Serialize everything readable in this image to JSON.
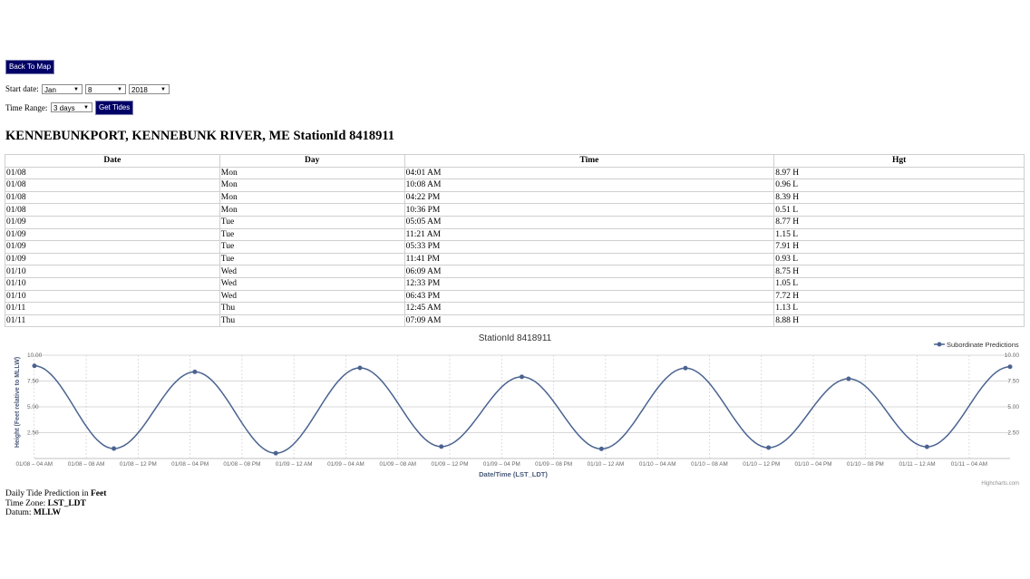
{
  "back_button": {
    "label": "Back To Map"
  },
  "start_date": {
    "label": "Start date:",
    "month": "Jan",
    "day": "8",
    "year": "2018"
  },
  "time_range": {
    "label": "Time Range:",
    "value": "3 days",
    "get_tides_label": "Get Tides"
  },
  "station_title": "KENNEBUNKPORT, KENNEBUNK RIVER, ME StationId 8418911",
  "table": {
    "headers": [
      "Date",
      "Day",
      "Time",
      "Hgt"
    ],
    "rows": [
      [
        "01/08",
        "Mon",
        "04:01 AM",
        "8.97 H"
      ],
      [
        "01/08",
        "Mon",
        "10:08 AM",
        "0.96 L"
      ],
      [
        "01/08",
        "Mon",
        "04:22 PM",
        "8.39 H"
      ],
      [
        "01/08",
        "Mon",
        "10:36 PM",
        "0.51 L"
      ],
      [
        "01/09",
        "Tue",
        "05:05 AM",
        "8.77 H"
      ],
      [
        "01/09",
        "Tue",
        "11:21 AM",
        "1.15 L"
      ],
      [
        "01/09",
        "Tue",
        "05:33 PM",
        "7.91 H"
      ],
      [
        "01/09",
        "Tue",
        "11:41 PM",
        "0.93 L"
      ],
      [
        "01/10",
        "Wed",
        "06:09 AM",
        "8.75 H"
      ],
      [
        "01/10",
        "Wed",
        "12:33 PM",
        "1.05 L"
      ],
      [
        "01/10",
        "Wed",
        "06:43 PM",
        "7.72 H"
      ],
      [
        "01/11",
        "Thu",
        "12:45 AM",
        "1.13 L"
      ],
      [
        "01/11",
        "Thu",
        "07:09 AM",
        "8.88 H"
      ]
    ]
  },
  "chart_data": {
    "type": "line",
    "title": "StationId 8418911",
    "xlabel": "Date/Time (LST_LDT)",
    "ylabel": "Height (Feet relative to MLLW)",
    "series": [
      {
        "name": "Subordinate Predictions",
        "color": "#4a6390",
        "points": [
          {
            "t": "01/08 04:01",
            "h": 8.97
          },
          {
            "t": "01/08 10:08",
            "h": 0.96
          },
          {
            "t": "01/08 16:22",
            "h": 8.39
          },
          {
            "t": "01/08 22:36",
            "h": 0.51
          },
          {
            "t": "01/09 05:05",
            "h": 8.77
          },
          {
            "t": "01/09 11:21",
            "h": 1.15
          },
          {
            "t": "01/09 17:33",
            "h": 7.91
          },
          {
            "t": "01/09 23:41",
            "h": 0.93
          },
          {
            "t": "01/10 06:09",
            "h": 8.75
          },
          {
            "t": "01/10 12:33",
            "h": 1.05
          },
          {
            "t": "01/10 18:43",
            "h": 7.72
          },
          {
            "t": "01/11 00:45",
            "h": 1.13
          },
          {
            "t": "01/11 07:09",
            "h": 8.88
          }
        ]
      }
    ],
    "x_ticks": [
      {
        "t": "01/08 04:00",
        "label": "01/08 – 04 AM"
      },
      {
        "t": "01/08 08:00",
        "label": "01/08 – 08 AM"
      },
      {
        "t": "01/08 12:00",
        "label": "01/08 – 12 PM"
      },
      {
        "t": "01/08 16:00",
        "label": "01/08 – 04 PM"
      },
      {
        "t": "01/08 20:00",
        "label": "01/08 – 08 PM"
      },
      {
        "t": "01/09 00:00",
        "label": "01/09 – 12 AM"
      },
      {
        "t": "01/09 04:00",
        "label": "01/09 – 04 AM"
      },
      {
        "t": "01/09 08:00",
        "label": "01/09 – 08 AM"
      },
      {
        "t": "01/09 12:00",
        "label": "01/09 – 12 PM"
      },
      {
        "t": "01/09 16:00",
        "label": "01/09 – 04 PM"
      },
      {
        "t": "01/09 20:00",
        "label": "01/09 – 08 PM"
      },
      {
        "t": "01/10 00:00",
        "label": "01/10 – 12 AM"
      },
      {
        "t": "01/10 04:00",
        "label": "01/10 – 04 AM"
      },
      {
        "t": "01/10 08:00",
        "label": "01/10 – 08 AM"
      },
      {
        "t": "01/10 12:00",
        "label": "01/10 – 12 PM"
      },
      {
        "t": "01/10 16:00",
        "label": "01/10 – 04 PM"
      },
      {
        "t": "01/10 20:00",
        "label": "01/10 – 08 PM"
      },
      {
        "t": "01/11 00:00",
        "label": "01/11 – 12 AM"
      },
      {
        "t": "01/11 04:00",
        "label": "01/11 – 04 AM"
      }
    ],
    "y_ticks": [
      "2.50",
      "5.00",
      "7.50",
      "10.00"
    ],
    "ylim": [
      0,
      10
    ],
    "xlim": [
      "01/08 04:01",
      "01/11 07:09"
    ],
    "grid": true,
    "legend_position": "top-right",
    "credits": "Highcharts.com"
  },
  "footer": {
    "prediction_prefix": "Daily Tide Prediction in ",
    "prediction_unit": "Feet",
    "timezone_label": "Time Zone: ",
    "timezone_value": "LST_LDT",
    "datum_label": "Datum: ",
    "datum_value": "MLLW"
  }
}
